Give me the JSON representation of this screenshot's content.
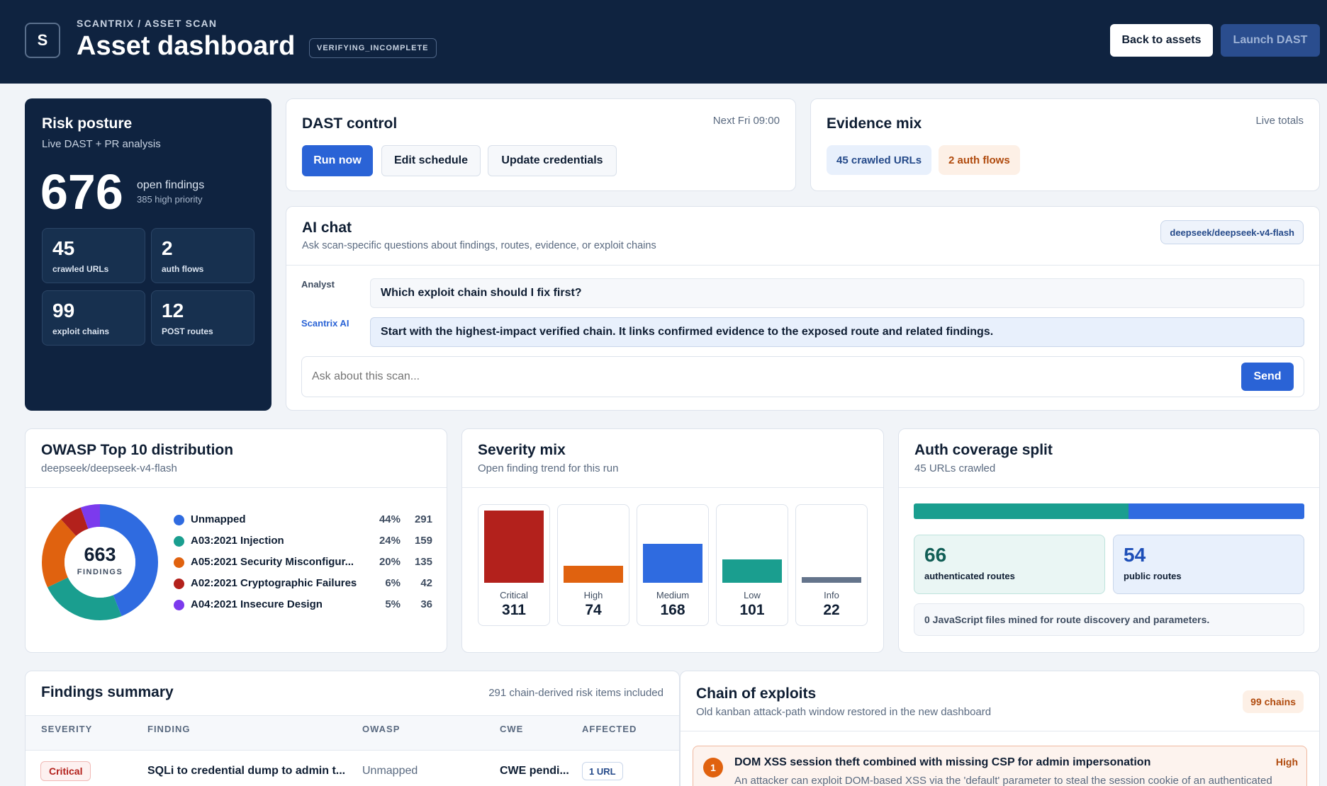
{
  "header": {
    "logo_letter": "S",
    "breadcrumb": "SCANTRIX / ASSET SCAN",
    "title": "Asset dashboard",
    "status": "VERIFYING_INCOMPLETE",
    "back_label": "Back to assets",
    "launch_label": "Launch DAST"
  },
  "risk": {
    "title": "Risk posture",
    "subtitle": "Live DAST + PR analysis",
    "open_findings": "676",
    "open_label": "open findings",
    "high_priority": "385 high priority",
    "stats": [
      {
        "value": "45",
        "label": "crawled URLs"
      },
      {
        "value": "2",
        "label": "auth flows"
      },
      {
        "value": "99",
        "label": "exploit chains"
      },
      {
        "value": "12",
        "label": "POST routes"
      }
    ]
  },
  "dast": {
    "title": "DAST control",
    "next_run": "Next Fri 09:00",
    "run_label": "Run now",
    "schedule_label": "Edit schedule",
    "credentials_label": "Update credentials"
  },
  "evidence": {
    "title": "Evidence mix",
    "note": "Live totals",
    "chips": [
      "45 crawled URLs",
      "2 auth flows"
    ]
  },
  "chat": {
    "title": "AI chat",
    "subtitle": "Ask scan-specific questions about findings, routes, evidence, or exploit chains",
    "model": "deepseek/deepseek-v4-flash",
    "messages": [
      {
        "sender": "Analyst",
        "text": "Which exploit chain should I fix first?"
      },
      {
        "sender": "Scantrix AI",
        "text": "Start with the highest-impact verified chain. It links confirmed evidence to the exposed route and related findings."
      }
    ],
    "placeholder": "Ask about this scan...",
    "send_label": "Send"
  },
  "owasp": {
    "title": "OWASP Top 10 distribution",
    "subtitle": "deepseek/deepseek-v4-flash",
    "total": "663",
    "total_label": "FINDINGS"
  },
  "severity": {
    "title": "Severity mix",
    "subtitle": "Open finding trend for this run"
  },
  "auth": {
    "title": "Auth coverage split",
    "subtitle": "45 URLs crawled",
    "authenticated_value": "66",
    "authenticated_label": "authenticated routes",
    "public_value": "54",
    "public_label": "public routes",
    "js_note": "0 JavaScript files mined for route discovery and parameters."
  },
  "findings": {
    "title": "Findings summary",
    "note": "291 chain-derived risk items included",
    "columns": [
      "SEVERITY",
      "FINDING",
      "OWASP",
      "CWE",
      "AFFECTED"
    ],
    "rows": [
      {
        "severity": "Critical",
        "finding": "SQLi to credential dump to admin t...",
        "owasp": "Unmapped",
        "cwe": "CWE pendi...",
        "affected": "1 URL"
      }
    ]
  },
  "chains": {
    "title": "Chain of exploits",
    "subtitle": "Old kanban attack-path window restored in the new dashboard",
    "count": "99 chains",
    "items": [
      {
        "index": "1",
        "title": "DOM XSS session theft combined with missing CSP for admin impersonation",
        "severity": "High",
        "description": "An attacker can exploit DOM-based XSS via the 'default' parameter to steal the session cookie of an authenticated"
      }
    ]
  },
  "colors": {
    "navy": "#0f2340",
    "primary": "#2a63d6",
    "critical": "#b3211c",
    "high": "#e0620f",
    "medium": "#2f6be0",
    "low": "#1a9e8f",
    "info": "#64748b",
    "purple": "#7c3aed"
  },
  "chart_data": [
    {
      "type": "pie",
      "categories": [
        "Unmapped",
        "A03:2021 Injection",
        "A05:2021 Security Misconfigur...",
        "A02:2021 Cryptographic Failures",
        "A04:2021 Insecure Design"
      ],
      "percents": [
        "44%",
        "24%",
        "20%",
        "6%",
        "5%"
      ],
      "values": [
        291,
        159,
        135,
        42,
        36
      ],
      "colors": [
        "#2f6be0",
        "#1a9e8f",
        "#e0620f",
        "#b3211c",
        "#7c3aed"
      ]
    },
    {
      "type": "bar",
      "categories": [
        "Critical",
        "High",
        "Medium",
        "Low",
        "Info"
      ],
      "values": [
        311,
        74,
        168,
        101,
        22
      ],
      "colors": [
        "#b3211c",
        "#e0620f",
        "#2f6be0",
        "#1a9e8f",
        "#64748b"
      ]
    },
    {
      "type": "bar",
      "categories": [
        "authenticated routes",
        "public routes"
      ],
      "values": [
        66,
        54
      ],
      "colors": [
        "#1a9e8f",
        "#2f6be0"
      ]
    }
  ]
}
